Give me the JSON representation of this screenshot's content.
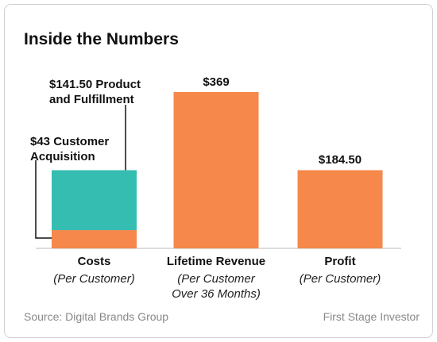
{
  "chart_data": {
    "type": "stacked-bar",
    "title": "Inside the Numbers",
    "categories": [
      "Costs",
      "Lifetime Revenue",
      "Profit"
    ],
    "subcategories": [
      "(Per Customer)",
      "(Per Customer\nOver 36 Months)",
      "(Per Customer)"
    ],
    "series": [
      {
        "color": "#f5884a",
        "values": [
          43,
          369,
          184.5
        ],
        "value_labels": [
          "$43 Customer\nAcquisition",
          "$369",
          "$184.50"
        ]
      },
      {
        "color": "#35bdb2",
        "values": [
          141.5,
          null,
          null
        ],
        "value_labels": [
          "$141.50 Product\nand Fulfillment",
          null,
          null
        ]
      }
    ],
    "source": "Source: Digital Brands Group",
    "brand": "First Stage Investor"
  }
}
